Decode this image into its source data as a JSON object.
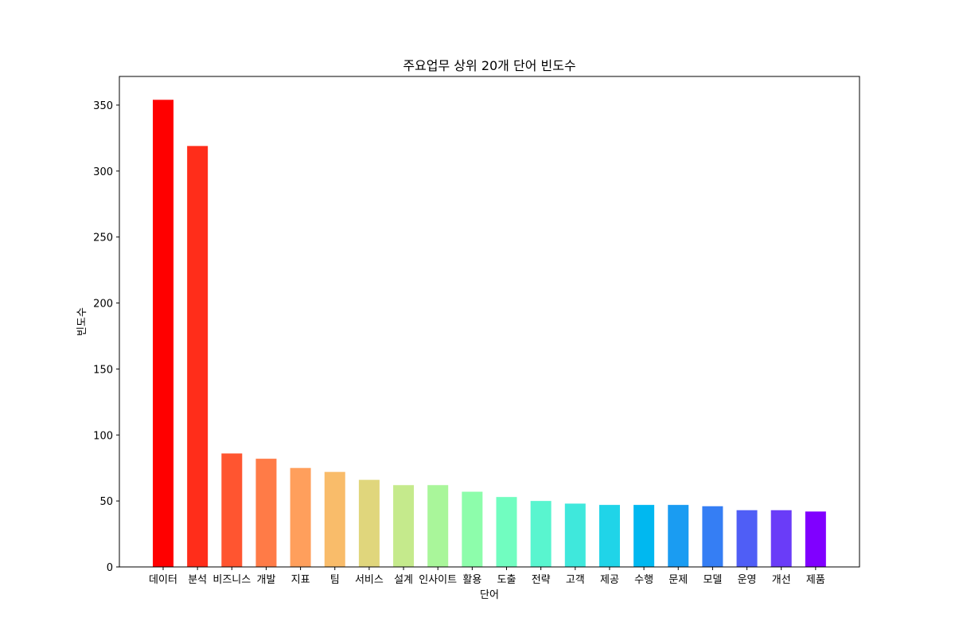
{
  "chart_data": {
    "type": "bar",
    "title": "주요업무 상위 20개 단어 빈도수",
    "xlabel": "단어",
    "ylabel": "빈도수",
    "categories": [
      "데이터",
      "분석",
      "비즈니스",
      "개발",
      "지표",
      "팀",
      "서비스",
      "설계",
      "인사이트",
      "활용",
      "도출",
      "전략",
      "고객",
      "제공",
      "수행",
      "문제",
      "모델",
      "운영",
      "개선",
      "제품"
    ],
    "values": [
      354,
      319,
      86,
      82,
      75,
      72,
      66,
      62,
      62,
      57,
      53,
      50,
      48,
      47,
      47,
      47,
      46,
      43,
      43,
      42
    ],
    "colors": [
      "#ff0000",
      "#ff2d1a",
      "#ff5530",
      "#ff7b47",
      "#ff9f5c",
      "#f9bc6a",
      "#e0d67c",
      "#c5ea8c",
      "#a9f69a",
      "#8dfdab",
      "#71fdc0",
      "#59f5cf",
      "#3fe8dc",
      "#20d4e8",
      "#00b8f0",
      "#1a9cf2",
      "#357ef4",
      "#4f5ef6",
      "#6a3cf8",
      "#8000ff"
    ],
    "y_ticks": [
      0,
      50,
      100,
      150,
      200,
      250,
      300,
      350
    ],
    "ylim": [
      0,
      371.7
    ],
    "grid": false,
    "legend": "none"
  }
}
